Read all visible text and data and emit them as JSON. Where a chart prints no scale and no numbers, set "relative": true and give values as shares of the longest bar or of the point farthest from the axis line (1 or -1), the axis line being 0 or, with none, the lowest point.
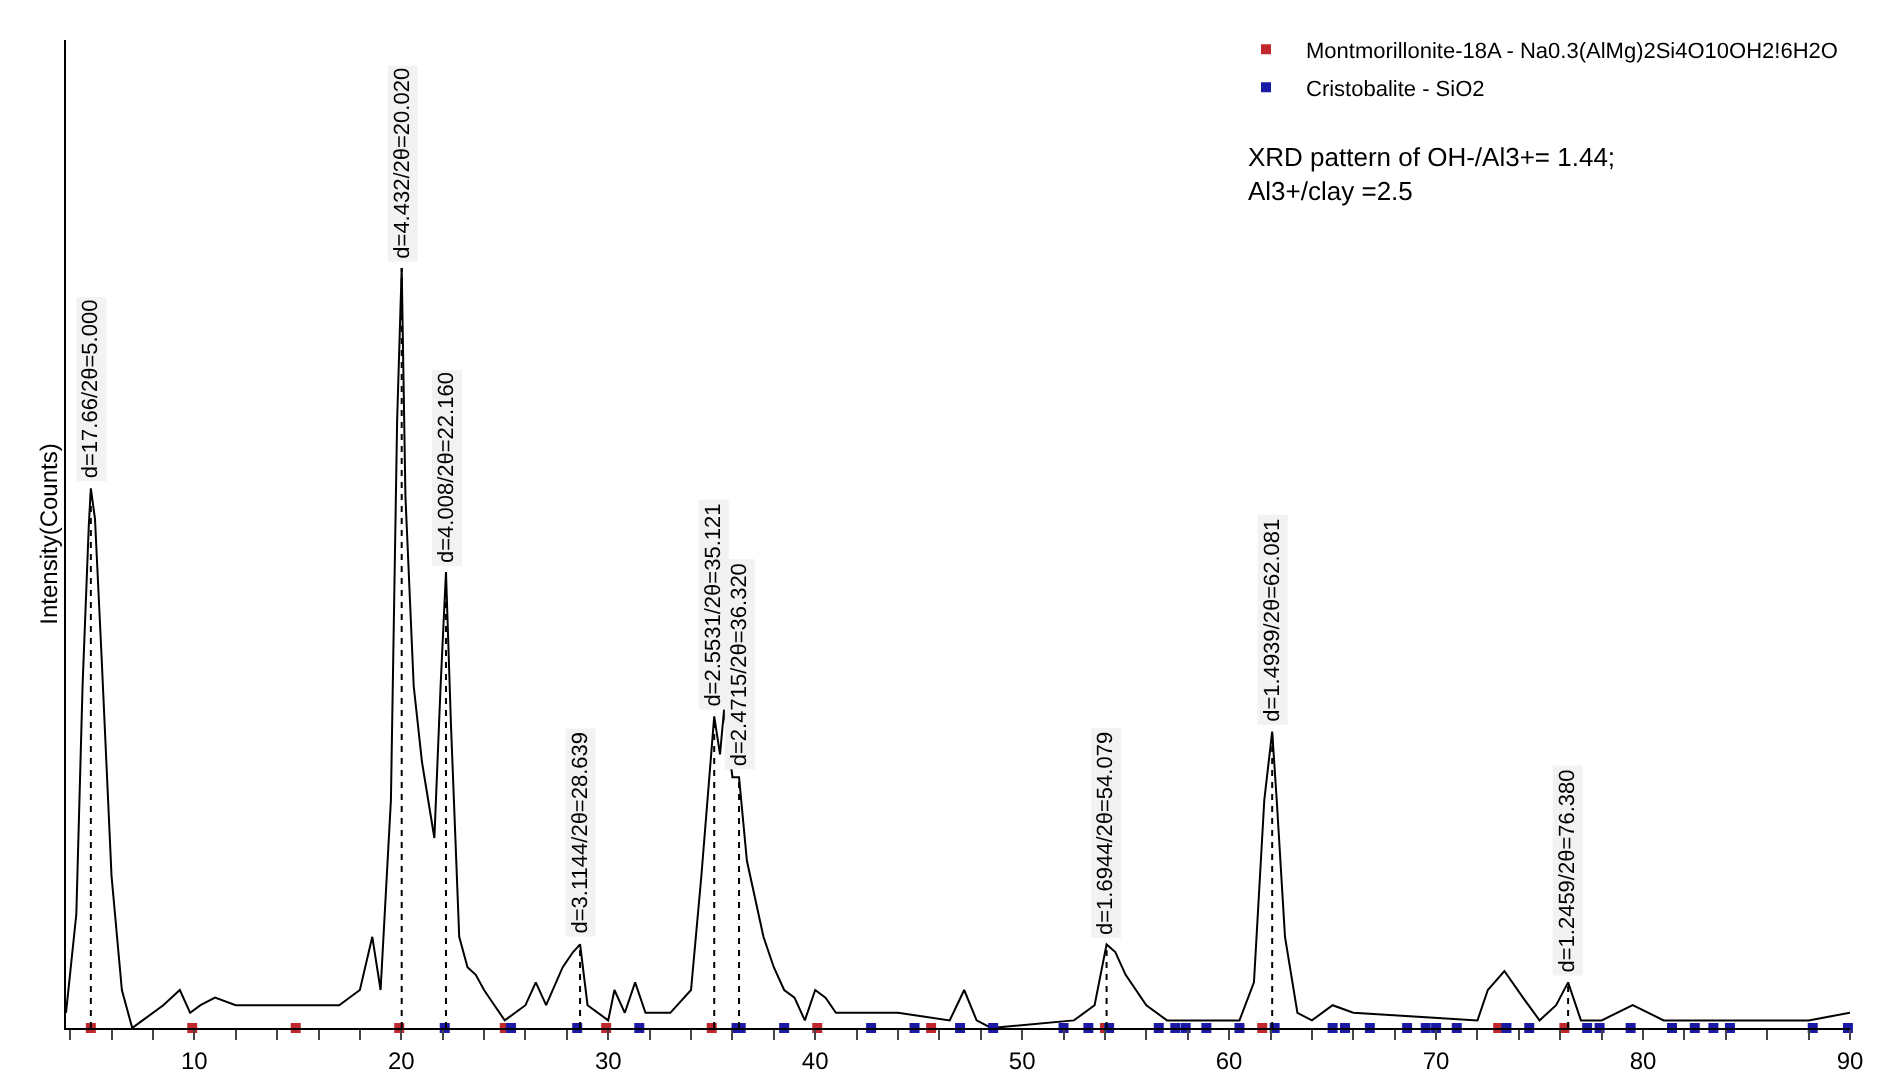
{
  "chart_data": {
    "type": "line",
    "relative": true,
    "ylabel": "Intensity(Counts)",
    "xlim": [
      3.8,
      90
    ],
    "tick_labels": "x",
    "legend": "top right",
    "marker": "none",
    "line_style": "solid",
    "xticks": [
      {
        "value": 4,
        "label": null
      },
      {
        "value": 6,
        "label": null
      },
      {
        "value": 8,
        "label": null
      },
      10,
      {
        "value": 12,
        "label": null
      },
      {
        "value": 14,
        "label": null
      },
      {
        "value": 16,
        "label": null
      },
      {
        "value": 18,
        "label": null
      },
      20,
      {
        "value": 22,
        "label": null
      },
      {
        "value": 24,
        "label": null
      },
      {
        "value": 26,
        "label": null
      },
      {
        "value": 28,
        "label": null
      },
      30,
      {
        "value": 32,
        "label": null
      },
      {
        "value": 34,
        "label": null
      },
      {
        "value": 36,
        "label": null
      },
      {
        "value": 38,
        "label": null
      },
      40,
      {
        "value": 42,
        "label": null
      },
      {
        "value": 44,
        "label": null
      },
      {
        "value": 46,
        "label": null
      },
      {
        "value": 48,
        "label": null
      },
      50,
      {
        "value": 52,
        "label": null
      },
      {
        "value": 54,
        "label": null
      },
      {
        "value": 56,
        "label": null
      },
      {
        "value": 58,
        "label": null
      },
      60,
      {
        "value": 62,
        "label": null
      },
      {
        "value": 64,
        "label": null
      },
      {
        "value": 66,
        "label": null
      },
      {
        "value": 68,
        "label": null
      },
      70,
      {
        "value": 72,
        "label": null
      },
      {
        "value": 74,
        "label": null
      },
      {
        "value": 76,
        "label": null
      },
      {
        "value": 78,
        "label": null
      },
      80,
      {
        "value": 82,
        "label": null
      },
      {
        "value": 84,
        "label": null
      },
      {
        "value": 86,
        "label": null
      },
      {
        "value": 88,
        "label": null
      },
      90
    ],
    "series": [
      {
        "color": "#000000",
        "x": [
          3.8,
          4.3,
          4.6,
          4.9,
          5.0,
          5.2,
          5.5,
          6.0,
          6.5,
          7.0,
          7.5,
          8.5,
          9.3,
          9.8,
          10.3,
          11,
          12,
          17,
          18,
          18.6,
          19.0,
          19.5,
          19.8,
          20.02,
          20.2,
          20.6,
          21,
          21.6,
          21.9,
          22.16,
          22.4,
          22.8,
          23.2,
          23.6,
          24,
          24.5,
          25,
          26,
          26.5,
          27,
          27.8,
          28.3,
          28.64,
          29,
          30,
          30.3,
          30.8,
          31.3,
          31.8,
          33,
          34,
          34.5,
          35.121,
          35.4,
          35.6,
          36.0,
          36.32,
          36.7,
          37.5,
          38,
          38.5,
          39,
          39.5,
          40,
          40.5,
          41,
          44,
          46.5,
          47.2,
          47.8,
          48.5,
          52.5,
          53.5,
          54.079,
          54.5,
          55,
          56,
          57,
          60.5,
          61.2,
          61.7,
          62.081,
          62.3,
          62.7,
          63.3,
          64,
          65,
          66,
          72,
          72.5,
          73.3,
          74.2,
          75,
          75.8,
          76.38,
          77,
          78,
          79.5,
          81,
          85,
          88,
          90
        ],
        "values": [
          0.02,
          0.15,
          0.45,
          0.66,
          0.71,
          0.67,
          0.5,
          0.2,
          0.05,
          0.0,
          0.01,
          0.03,
          0.05,
          0.02,
          0.03,
          0.04,
          0.03,
          0.03,
          0.05,
          0.12,
          0.05,
          0.3,
          0.8,
          1.0,
          0.7,
          0.45,
          0.35,
          0.25,
          0.45,
          0.6,
          0.4,
          0.12,
          0.08,
          0.07,
          0.05,
          0.03,
          0.01,
          0.03,
          0.06,
          0.03,
          0.08,
          0.1,
          0.11,
          0.03,
          0.01,
          0.05,
          0.02,
          0.06,
          0.02,
          0.02,
          0.05,
          0.2,
          0.41,
          0.36,
          0.42,
          0.33,
          0.33,
          0.22,
          0.12,
          0.08,
          0.05,
          0.04,
          0.01,
          0.05,
          0.04,
          0.02,
          0.02,
          0.01,
          0.05,
          0.01,
          0.0,
          0.01,
          0.03,
          0.11,
          0.1,
          0.07,
          0.03,
          0.01,
          0.01,
          0.06,
          0.3,
          0.39,
          0.3,
          0.12,
          0.02,
          0.01,
          0.03,
          0.02,
          0.01,
          0.05,
          0.075,
          0.04,
          0.01,
          0.03,
          0.06,
          0.01,
          0.01,
          0.03,
          0.01,
          0.01,
          0.01,
          0.02
        ]
      },
      {
        "type": "scatter",
        "name": "Montmorillonite-18A - Na0.3(AlMg)2Si4O10OH2!6H2O",
        "color": "#c0282d",
        "marker": "square",
        "x": [
          5.0,
          9.9,
          14.9,
          19.9,
          25.0,
          29.9,
          35.0,
          40.1,
          45.6,
          54.0,
          61.6,
          73.0,
          76.2
        ],
        "values": [
          0,
          0,
          0,
          0,
          0,
          0,
          0,
          0,
          0,
          0,
          0,
          0,
          0
        ]
      },
      {
        "type": "scatter",
        "name": "Cristobalite - SiO2",
        "color": "#1a1aa6",
        "marker": "square",
        "x": [
          22.1,
          25.3,
          28.5,
          31.5,
          36.2,
          36.4,
          38.5,
          42.7,
          44.8,
          47.0,
          48.6,
          52.0,
          53.2,
          54.2,
          56.6,
          57.4,
          57.9,
          58.9,
          60.5,
          62.2,
          65.0,
          65.6,
          66.8,
          68.6,
          69.5,
          70.0,
          71.0,
          73.4,
          74.5,
          77.3,
          77.9,
          79.4,
          81.4,
          82.5,
          83.4,
          84.2,
          88.2,
          89.9
        ],
        "values": [
          0,
          0,
          0,
          0,
          0,
          0,
          0,
          0,
          0,
          0,
          0,
          0,
          0,
          0,
          0,
          0,
          0,
          0,
          0,
          0,
          0,
          0,
          0,
          0,
          0,
          0,
          0,
          0,
          0,
          0,
          0,
          0,
          0,
          0,
          0,
          0,
          0,
          0
        ]
      }
    ],
    "annotations": [
      {
        "text": "d=17.66/2θ=5.000",
        "x": 5.0,
        "y": 0.71
      },
      {
        "text": "d=4.432/2θ=20.020",
        "x": 20.02,
        "y": 1.0
      },
      {
        "text": "d=4.008/2θ=22.160",
        "x": 22.16,
        "y": 0.6
      },
      {
        "text": "d=3.1144/2θ=28.639",
        "x": 28.639,
        "y": 0.11
      },
      {
        "text": "d=2.5531/2θ=35.121",
        "x": 35.121,
        "y": 0.41
      },
      {
        "text": "d=2.4715/2θ=36.320",
        "x": 36.32,
        "y": 0.33
      },
      {
        "text": "d=1.6944/2θ=54.079",
        "x": 54.079,
        "y": 0.11
      },
      {
        "text": "d=1.4939/2θ=62.081",
        "x": 62.081,
        "y": 0.39
      },
      {
        "text": "d=1.2459/2θ=76.380",
        "x": 76.38,
        "y": 0.06
      },
      "XRD pattern of OH-/Al3+= 1.44;\nAl3+/clay =2.5"
    ]
  }
}
